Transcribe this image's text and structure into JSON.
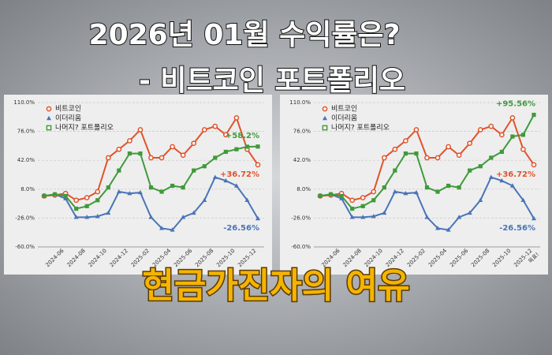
{
  "headline": {
    "line1": "2026년 01월 수익률은?",
    "line2": "- 비트코인 포트폴리오"
  },
  "caption": "현금가진자의 여유",
  "chart_data": [
    {
      "type": "line",
      "categories": [
        null,
        "2024-06",
        null,
        "2024-08",
        null,
        "2024-10",
        null,
        "2024-12",
        null,
        "2025-02",
        null,
        "2025-04",
        null,
        "2025-06",
        null,
        "2025-08",
        null,
        "2025-10",
        null,
        "2025-12",
        null
      ],
      "ylim": [
        -60,
        110
      ],
      "yticks": [
        {
          "value": 110,
          "label": "110.0%"
        },
        {
          "value": 76,
          "label": "76.0%"
        },
        {
          "value": 42,
          "label": "42.0%"
        },
        {
          "value": 8,
          "label": "8.0%"
        },
        {
          "value": -26,
          "label": "-26.0%"
        },
        {
          "value": -60,
          "label": "-60.0%"
        }
      ],
      "grid": true,
      "series": [
        {
          "name": "비트코인",
          "color": "#e0532a",
          "marker": "circle",
          "values": [
            0,
            1,
            3,
            -5,
            -2,
            5,
            45,
            55,
            65,
            78,
            45,
            45,
            58,
            48,
            62,
            78,
            82,
            72,
            92,
            55,
            36.72
          ],
          "value_labels": [
            null,
            null,
            null,
            null,
            null,
            null,
            null,
            null,
            null,
            null,
            null,
            null,
            null,
            null,
            null,
            null,
            null,
            null,
            null,
            null,
            "+36.72%"
          ]
        },
        {
          "name": "이더리움",
          "color": "#4a74b8",
          "marker": "triangle",
          "values": [
            0,
            2,
            -3,
            -25,
            -25,
            -24,
            -20,
            5,
            3,
            4,
            -25,
            -38,
            -40,
            -25,
            -20,
            -5,
            22,
            18,
            12,
            -5,
            -26.56
          ],
          "value_labels": [
            null,
            null,
            null,
            null,
            null,
            null,
            null,
            null,
            null,
            null,
            null,
            null,
            null,
            null,
            null,
            null,
            null,
            null,
            null,
            null,
            "-26.56%"
          ]
        },
        {
          "name": "나머지? 포트폴리오",
          "color": "#3f9a3a",
          "marker": "square",
          "values": [
            0,
            2,
            0,
            -15,
            -12,
            -5,
            10,
            30,
            50,
            50,
            10,
            5,
            12,
            10,
            30,
            35,
            45,
            52,
            55,
            58,
            58.2
          ],
          "value_labels": [
            null,
            null,
            null,
            null,
            null,
            null,
            null,
            null,
            null,
            null,
            null,
            null,
            null,
            null,
            null,
            null,
            null,
            null,
            null,
            null,
            "+58.2%"
          ]
        }
      ]
    },
    {
      "type": "line",
      "categories": [
        null,
        "2024-06",
        null,
        "2024-08",
        null,
        "2024-10",
        null,
        "2024-12",
        null,
        "2025-02",
        null,
        "2025-04",
        null,
        "2025-06",
        null,
        "2025-08",
        null,
        "2025-10",
        null,
        "2025-12",
        "목표!"
      ],
      "ylim": [
        -60,
        110
      ],
      "yticks": [
        {
          "value": 110,
          "label": "110.0%"
        },
        {
          "value": 76,
          "label": "76.0%"
        },
        {
          "value": 42,
          "label": "42.0%"
        },
        {
          "value": 8,
          "label": "8.0%"
        },
        {
          "value": -26,
          "label": "-26.0%"
        },
        {
          "value": -60,
          "label": "-60.0%"
        }
      ],
      "grid": true,
      "series": [
        {
          "name": "비트코인",
          "color": "#e0532a",
          "marker": "circle",
          "values": [
            0,
            1,
            3,
            -5,
            -2,
            5,
            45,
            55,
            65,
            78,
            45,
            45,
            58,
            48,
            62,
            78,
            82,
            72,
            92,
            55,
            36.72
          ],
          "value_labels": [
            null,
            null,
            null,
            null,
            null,
            null,
            null,
            null,
            null,
            null,
            null,
            null,
            null,
            null,
            null,
            null,
            null,
            null,
            null,
            null,
            "+36.72%"
          ]
        },
        {
          "name": "이더리움",
          "color": "#4a74b8",
          "marker": "triangle",
          "values": [
            0,
            2,
            -3,
            -25,
            -25,
            -24,
            -20,
            5,
            3,
            4,
            -25,
            -38,
            -40,
            -25,
            -20,
            -5,
            22,
            18,
            12,
            -5,
            -26.56
          ],
          "value_labels": [
            null,
            null,
            null,
            null,
            null,
            null,
            null,
            null,
            null,
            null,
            null,
            null,
            null,
            null,
            null,
            null,
            null,
            null,
            null,
            null,
            "-26.56%"
          ]
        },
        {
          "name": "나머지? 포트폴리오",
          "color": "#3f9a3a",
          "marker": "square",
          "values": [
            0,
            2,
            0,
            -15,
            -12,
            -5,
            10,
            30,
            50,
            50,
            10,
            5,
            12,
            10,
            30,
            35,
            45,
            52,
            70,
            72,
            95.56
          ],
          "value_labels": [
            null,
            null,
            null,
            null,
            null,
            null,
            null,
            null,
            null,
            null,
            null,
            null,
            null,
            null,
            null,
            null,
            null,
            null,
            null,
            null,
            "+95.56%"
          ]
        }
      ]
    }
  ]
}
